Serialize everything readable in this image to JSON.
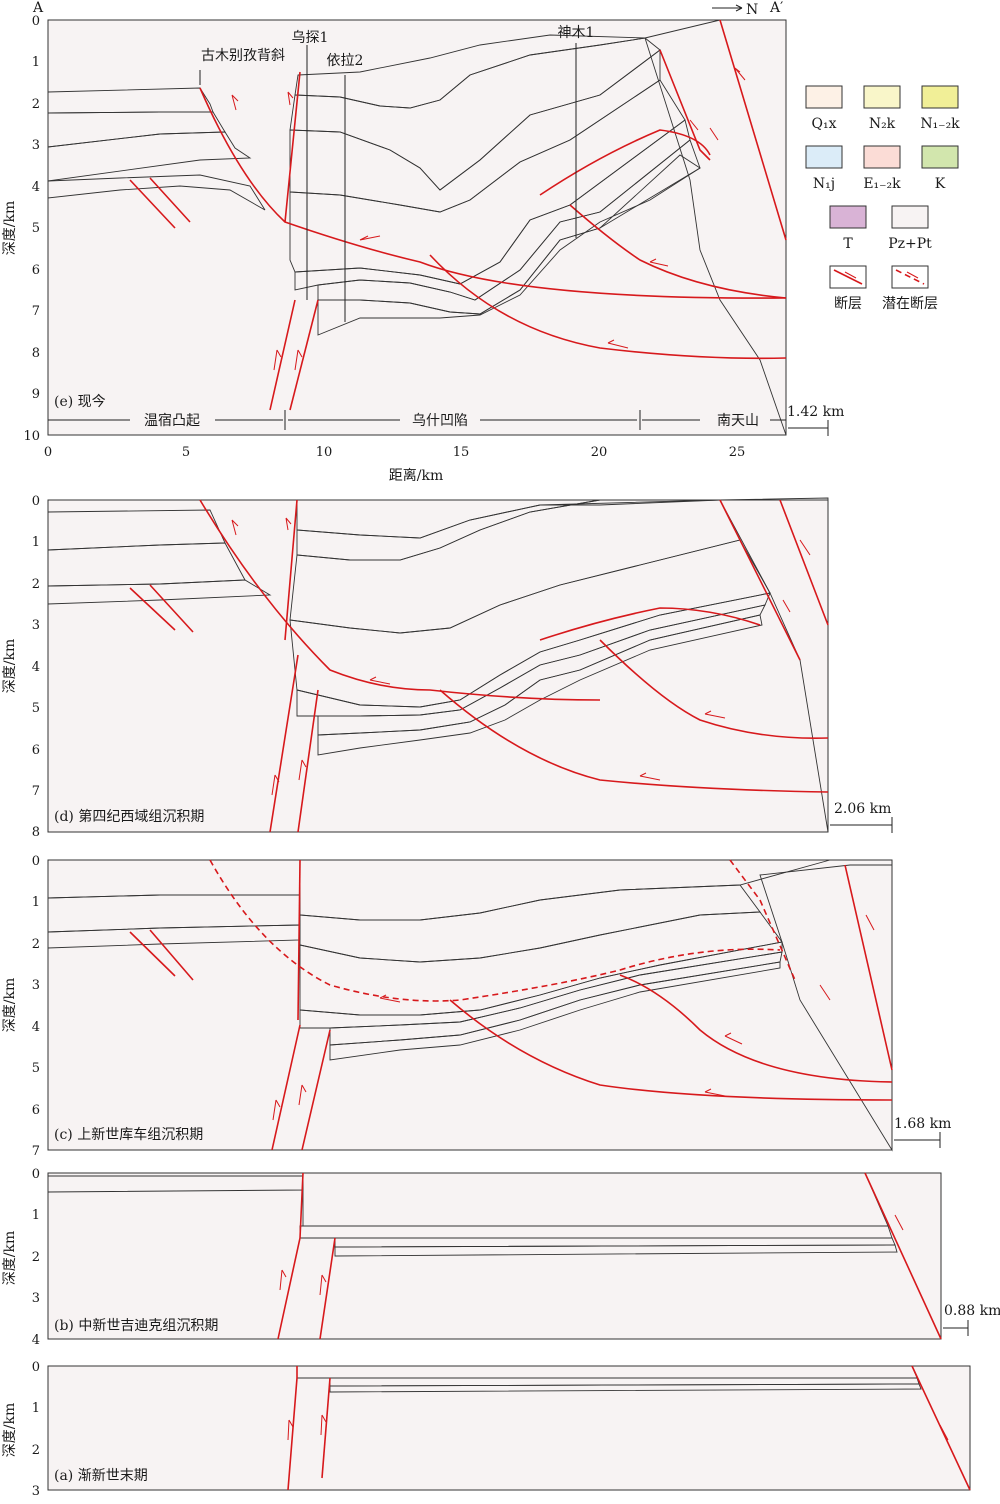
{
  "colors": {
    "Q1x": "#fdf1e6",
    "N2k": "#f9f6c9",
    "N12k": "#f1ef97",
    "N1j": "#dbecf8",
    "E12k": "#fbdcd6",
    "K": "#d2e6ad",
    "T": "#d9b3d6",
    "PzPt": "#f7f3f3",
    "fault": "#d7191c"
  },
  "section_e": {
    "corner_left": "A",
    "corner_right": "A′",
    "north": "N",
    "caption": "(e) 现今",
    "ylabel": "深度/km",
    "xlabel": "距离/km",
    "y_ticks": [
      "0",
      "1",
      "2",
      "3",
      "4",
      "5",
      "6",
      "7",
      "8",
      "9",
      "10"
    ],
    "x_ticks": [
      "0",
      "5",
      "10",
      "15",
      "20",
      "25"
    ],
    "wells": [
      "古木别孜背斜",
      "乌探1",
      "依拉2",
      "神木1"
    ],
    "zones": [
      "温宿凸起",
      "乌什凹陷",
      "南天山"
    ],
    "shortening": "1.42 km"
  },
  "section_d": {
    "caption": "(d) 第四纪西域组沉积期",
    "ylabel": "深度/km",
    "y_ticks": [
      "0",
      "1",
      "2",
      "3",
      "4",
      "5",
      "6",
      "7",
      "8"
    ],
    "shortening": "2.06 km"
  },
  "section_c": {
    "caption": "(c) 上新世库车组沉积期",
    "ylabel": "深度/km",
    "y_ticks": [
      "0",
      "1",
      "2",
      "3",
      "4",
      "5",
      "6",
      "7"
    ],
    "shortening": "1.68 km"
  },
  "section_b": {
    "caption": "(b) 中新世吉迪克组沉积期",
    "ylabel": "深度/km",
    "y_ticks": [
      "0",
      "1",
      "2",
      "3",
      "4"
    ],
    "shortening": "0.88 km"
  },
  "section_a": {
    "caption": "(a) 渐新世末期",
    "ylabel": "深度/km",
    "y_ticks": [
      "0",
      "1",
      "2",
      "3"
    ]
  },
  "legend": {
    "items": [
      {
        "label": "Q₁x",
        "color": "#fdf1e6"
      },
      {
        "label": "N₂k",
        "color": "#f9f6c9"
      },
      {
        "label": "N₁₋₂k",
        "color": "#f1ef97"
      },
      {
        "label": "N₁j",
        "color": "#dbecf8"
      },
      {
        "label": "E₁₋₂k",
        "color": "#fbdcd6"
      },
      {
        "label": "K",
        "color": "#d2e6ad"
      },
      {
        "label": "T",
        "color": "#d9b3d6"
      },
      {
        "label": "Pz+Pt",
        "color": "#f7f3f3"
      }
    ],
    "fault_label": "断层",
    "latent_fault_label": "潜在断层"
  }
}
